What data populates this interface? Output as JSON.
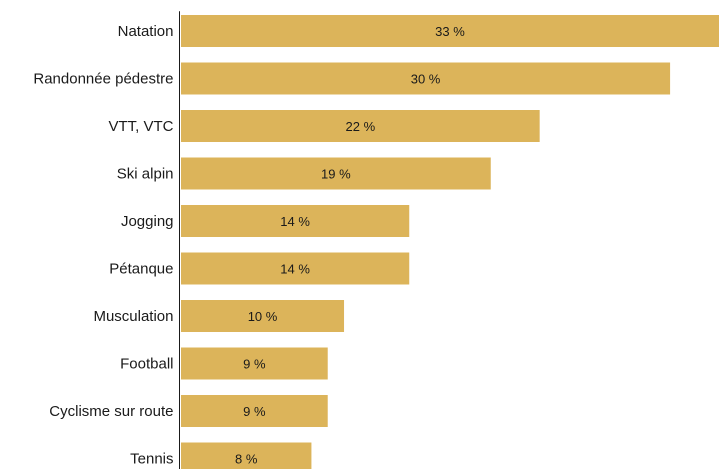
{
  "chart_data": {
    "type": "bar",
    "orientation": "horizontal",
    "categories": [
      "Natation",
      "Randonnée pédestre",
      "VTT, VTC",
      "Ski alpin",
      "Jogging",
      "Pétanque",
      "Musculation",
      "Football",
      "Cyclisme sur route",
      "Tennis"
    ],
    "values": [
      33,
      30,
      22,
      19,
      14,
      14,
      10,
      9,
      9,
      8
    ],
    "value_labels": [
      "33 %",
      "30 %",
      "22 %",
      "19 %",
      "14 %",
      "14 %",
      "10 %",
      "9 %",
      "9 %",
      "8 %"
    ],
    "unit": "%",
    "xlim": [
      0,
      33
    ],
    "grid": false,
    "legend": "none",
    "colors": {
      "bar": "#dcb45a",
      "text": "#1a1a1a",
      "axis": "#1a1a1a"
    }
  }
}
